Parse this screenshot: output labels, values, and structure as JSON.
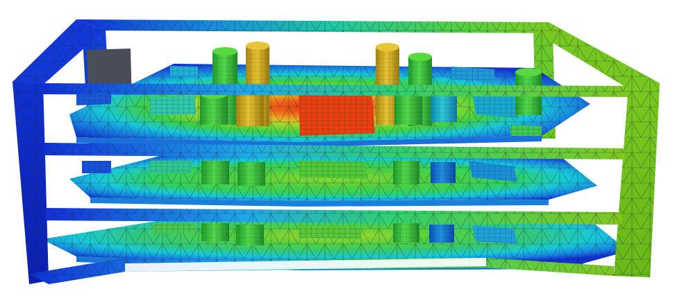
{
  "image": {
    "subject": "fem-thermal-mesh-render",
    "background": "#ffffff",
    "palette": {
      "blue": "#1030d8",
      "blue_dark": "#0a1fb0",
      "cyan": "#12c8e0",
      "cyan_dark": "#0aa0c8",
      "green": "#3fd240",
      "green_dark": "#25a830",
      "yellow_green": "#8ad21e",
      "yellow": "#d8c020",
      "orange": "#f08018",
      "red": "#e03010",
      "mesh_line": "#1a2a3a"
    }
  }
}
